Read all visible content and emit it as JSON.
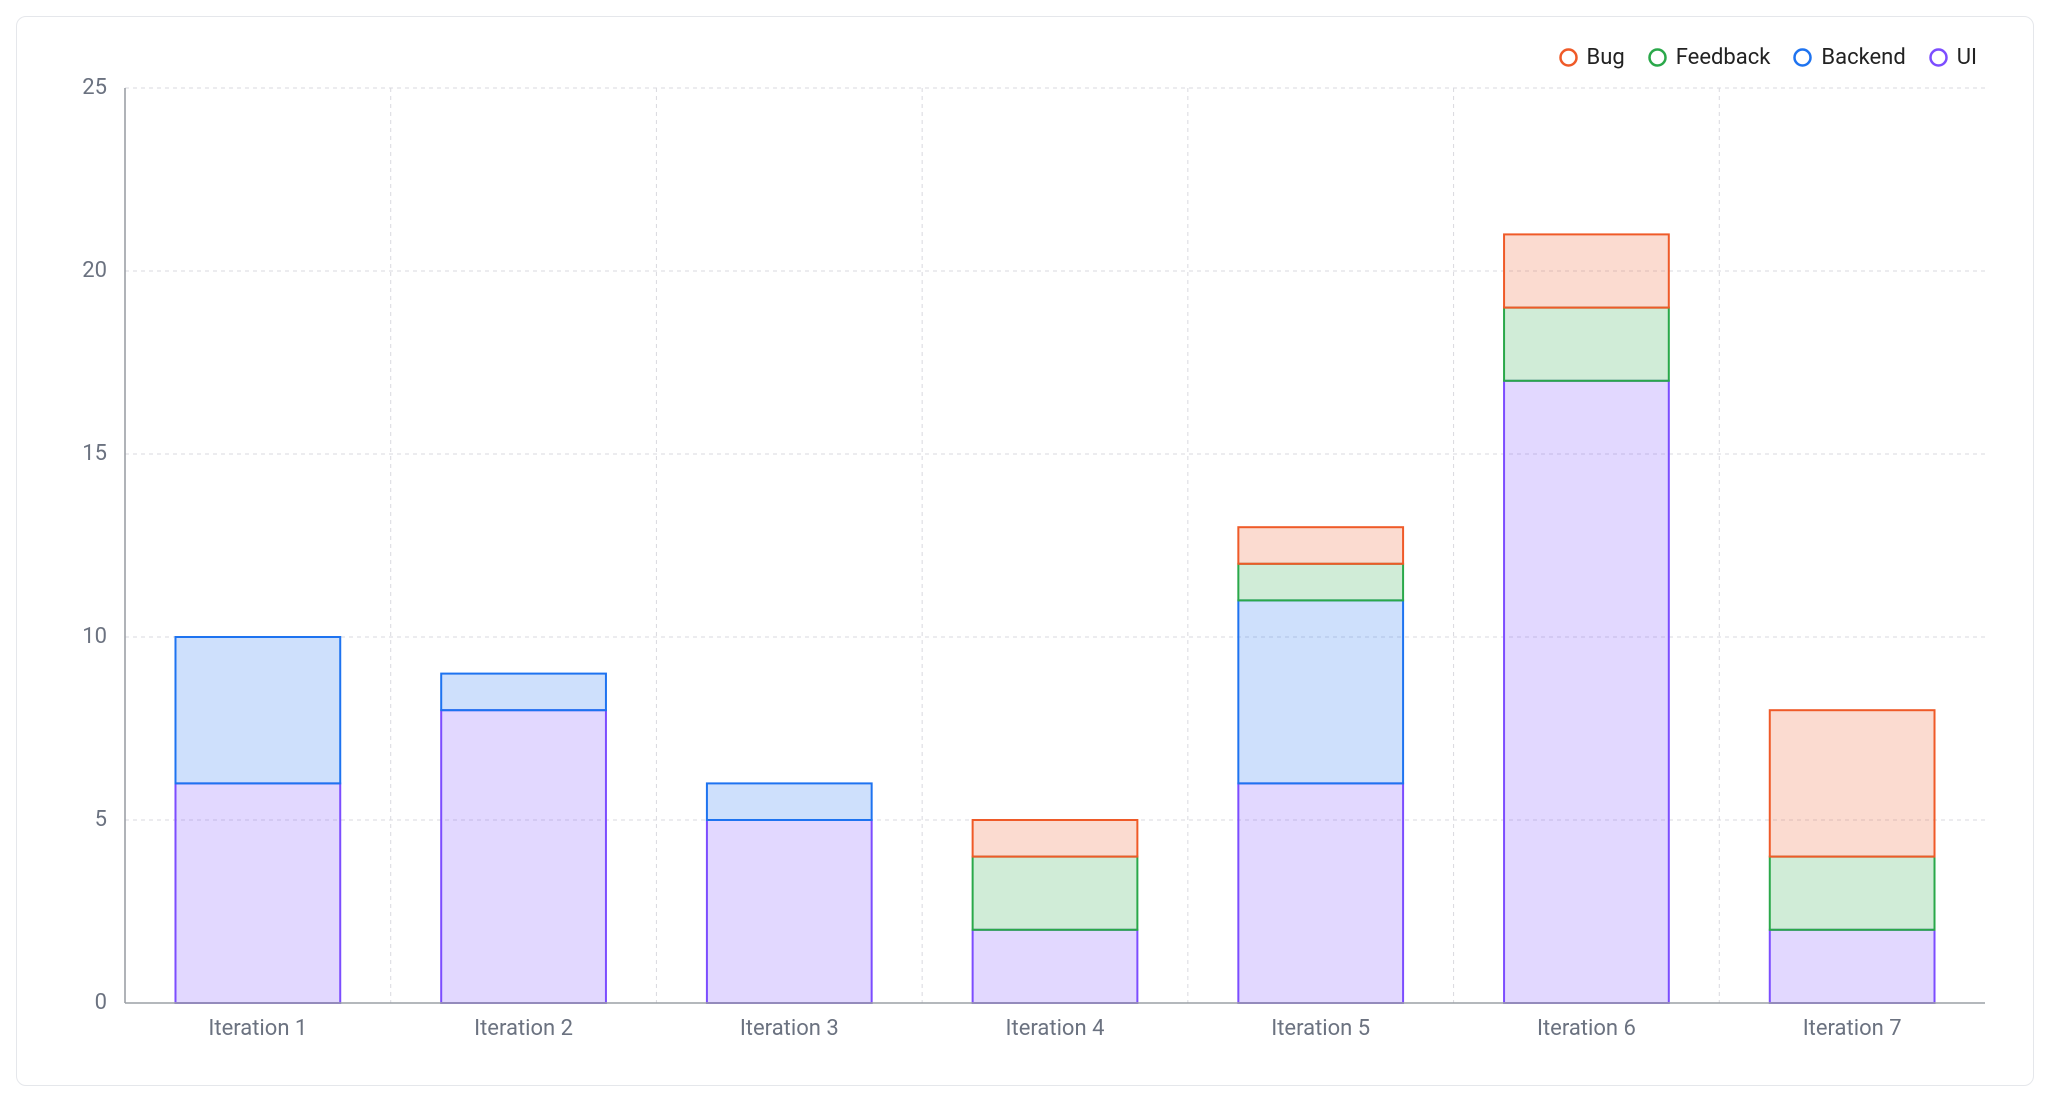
{
  "chart": {
    "type": "stacked-bar",
    "background_color": "#ffffff",
    "card_border_color": "#e5e7eb",
    "grid_color": "#d9d9df",
    "axis_color": "#9ca0a6",
    "axis_stroke_width": 1.6,
    "axis_label_color": "#6b7280",
    "axis_label_fontsize": 22,
    "legend_fontsize": 22,
    "legend_text_color": "#222222",
    "legend_circle_radius": 8,
    "legend_circle_stroke_width": 2.5,
    "ylim": [
      0,
      25
    ],
    "ytick_step": 5,
    "bar_width_ratio": 0.62,
    "bar_stroke_width": 2,
    "segment_fill_opacity": 0.22,
    "categories": [
      "Iteration 1",
      "Iteration 2",
      "Iteration 3",
      "Iteration 4",
      "Iteration 5",
      "Iteration 6",
      "Iteration 7"
    ],
    "legend_order": [
      "bug",
      "feedback",
      "backend",
      "ui"
    ],
    "series": {
      "ui": {
        "label": "UI",
        "stroke": "#7c4dff",
        "fill": "#7c4dff"
      },
      "backend": {
        "label": "Backend",
        "stroke": "#1e73f0",
        "fill": "#1e73f0"
      },
      "feedback": {
        "label": "Feedback",
        "stroke": "#2aa84a",
        "fill": "#2aa84a"
      },
      "bug": {
        "label": "Bug",
        "stroke": "#ef5a28",
        "fill": "#ef5a28"
      }
    },
    "stack_order_bottom_to_top": [
      "ui",
      "backend",
      "feedback",
      "bug"
    ],
    "data": {
      "ui": [
        6,
        8,
        5,
        2,
        6,
        17,
        2
      ],
      "backend": [
        4,
        1,
        1,
        0,
        5,
        0,
        0
      ],
      "feedback": [
        0,
        0,
        0,
        2,
        1,
        2,
        2
      ],
      "bug": [
        0,
        0,
        0,
        1,
        1,
        2,
        4
      ]
    }
  }
}
